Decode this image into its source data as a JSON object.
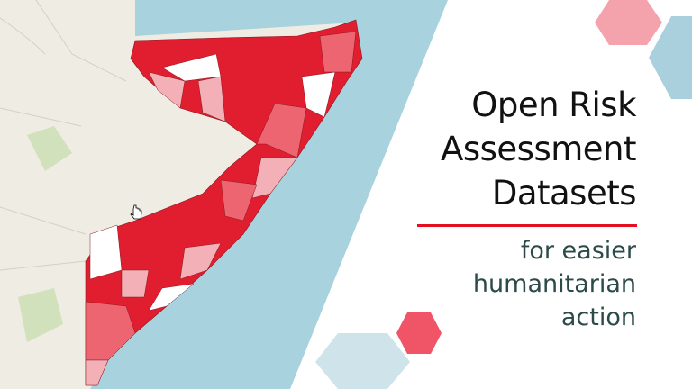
{
  "title": {
    "lines": [
      "Open Risk",
      "Assessment",
      "Datasets"
    ]
  },
  "subtitle": {
    "lines": [
      "for easier",
      "humanitarian",
      "action"
    ]
  },
  "colors": {
    "land": "#efece4",
    "sea": "#a7d2de",
    "risk_high": "#e11d30",
    "risk_medium": "#ec6571",
    "risk_low": "#f3b1b7",
    "divider": "#e3101f",
    "hex_pink": "#f4a3ad",
    "hex_blue": "#a9d0dc",
    "hex_red": "#ef5567",
    "hex_lightblue": "#cfe3ea"
  },
  "icons": {
    "cursor": "hand-cursor-icon"
  }
}
